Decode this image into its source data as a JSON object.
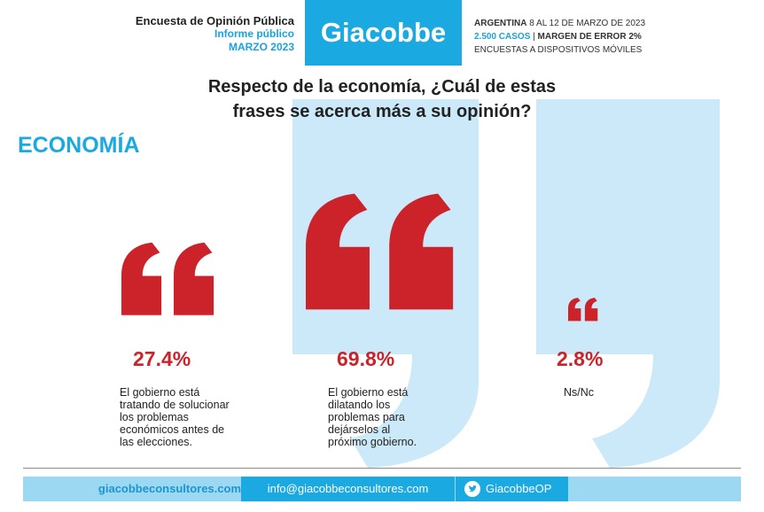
{
  "header": {
    "left": {
      "title": "Encuesta de Opinión Pública",
      "subtitle": "Informe público",
      "date": "MARZO 2023"
    },
    "brand": "Giacobbe",
    "right": {
      "line1_bold": "ARGENTINA",
      "line1_rest": " 8 AL 12 DE MARZO DE 2023",
      "line2_cases": "2.500 CASOS",
      "line2_sep": " | ",
      "line2_error": "MARGEN DE ERROR 2%",
      "line3": "ENCUESTAS A DISPOSITIVOS MÓVILES"
    }
  },
  "question": {
    "line1": "Respecto de la economía, ¿Cuál de estas",
    "line2": "frases se acerca más a su opinión?"
  },
  "section_title": "ECONOMÍA",
  "colors": {
    "accent_blue": "#1ba9e1",
    "light_blue": "#cbe9f8",
    "red": "#cc2229"
  },
  "chart_data": {
    "type": "bar",
    "categories": [
      "El gobierno está tratando de solucionar los problemas económicos antes de las elecciones.",
      "El gobierno está dilatando los problemas para dejárselos al próximo gobierno.",
      "Ns/Nc"
    ],
    "values": [
      27.4,
      69.8,
      2.8
    ],
    "labels": [
      "27.4%",
      "69.8%",
      "2.8%"
    ],
    "unit": "%"
  },
  "items": [
    {
      "pct": "27.4%",
      "desc": [
        "El gobierno está",
        "tratando de solucionar",
        "los problemas",
        "económicos antes de",
        "las elecciones."
      ]
    },
    {
      "pct": "69.8%",
      "desc": [
        "El gobierno está",
        "dilatando los",
        "problemas para",
        "dejárselos al",
        "próximo gobierno."
      ]
    },
    {
      "pct": "2.8%",
      "desc": [
        "Ns/Nc"
      ]
    }
  ],
  "footer": {
    "website": "giacobbeconsultores.com",
    "email": "info@giacobbeconsultores.com",
    "social": "GiacobbeOP",
    "social_icon": "twitter-icon"
  }
}
